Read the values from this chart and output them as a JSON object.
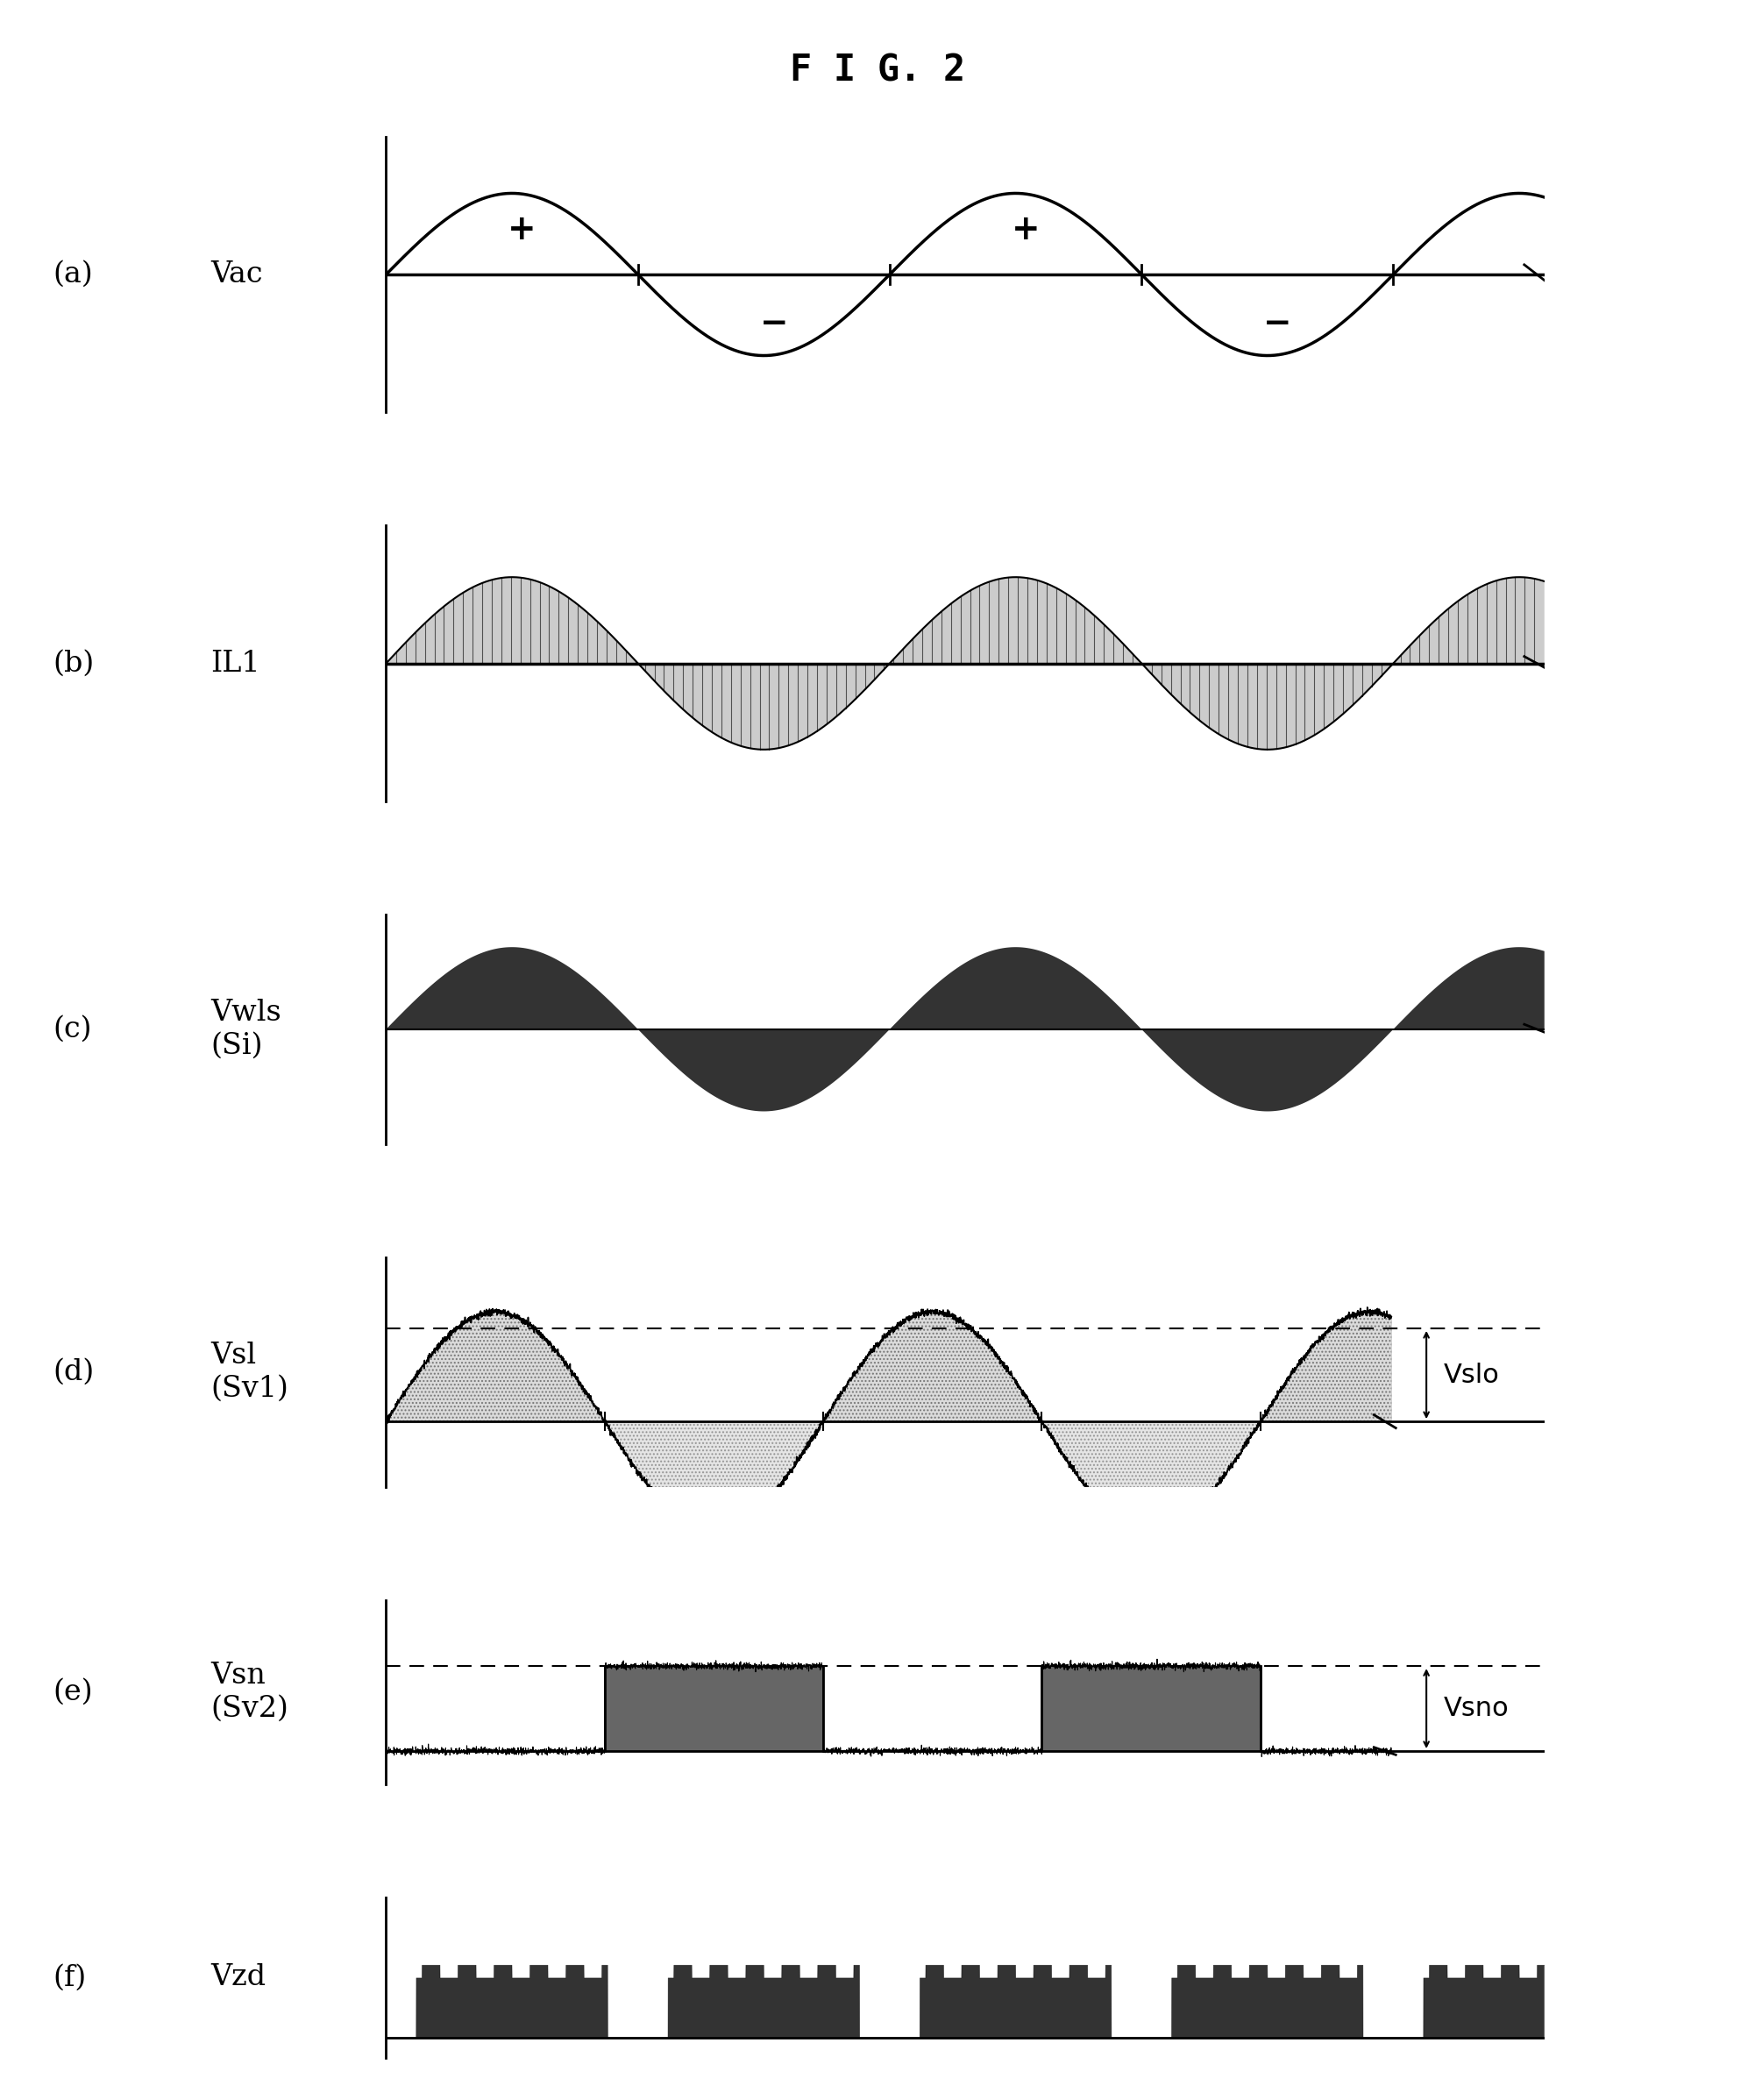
{
  "title": "F I G. 2",
  "panels": [
    "(a)",
    "(b)",
    "(c)",
    "(d)",
    "(e)",
    "(f)"
  ],
  "waveform_labels": [
    "Vac",
    "IL1",
    "Vwls\n(Si)",
    "Vsl\n(Sv1)",
    "Vsn\n(Sv2)",
    "Vzd"
  ],
  "right_labels": [
    "",
    "",
    "",
    "Vslo",
    "Vsno",
    ""
  ],
  "background_color": "#ffffff",
  "line_color": "#000000",
  "fill_dark": "#333333",
  "fill_medium": "#888888",
  "fill_light": "#bbbbbb",
  "n_cycles": 2.3,
  "T": 1.0,
  "ripple_n": 14,
  "title_fontsize": 30,
  "label_fontsize": 24,
  "letter_fontsize": 24
}
